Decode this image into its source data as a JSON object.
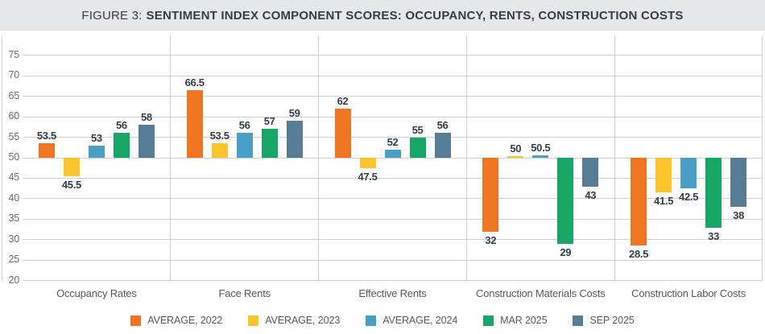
{
  "title": {
    "prefix": "FIGURE 3:",
    "main": "SENTIMENT INDEX COMPONENT SCORES: OCCUPANCY, RENTS, CONSTRUCTION COSTS"
  },
  "colors": {
    "title_bar_bg": "#e6e7e8",
    "title_text": "#333e48",
    "gridline": "#cfd0d2",
    "tick_text": "#6d6e71",
    "category_text": "#58595b",
    "value_label_text": "#333e48",
    "legend_text": "#58595b"
  },
  "chart_data": {
    "type": "bar",
    "title": "FIGURE 3: SENTIMENT INDEX COMPONENT SCORES: OCCUPANCY, RENTS, CONSTRUCTION COSTS",
    "baseline": 50,
    "ylim": [
      20,
      75
    ],
    "yticks": [
      75,
      70,
      65,
      60,
      55,
      50,
      45,
      40,
      35,
      30,
      25,
      20
    ],
    "grid": true,
    "legend_position": "bottom",
    "categories": [
      "Occupancy Rates",
      "Face Rents",
      "Effective Rents",
      "Construction Materials Costs",
      "Construction Labor Costs"
    ],
    "series": [
      {
        "name": "AVERAGE, 2022",
        "color": "#ef7523",
        "values": [
          53.5,
          66.5,
          62,
          32,
          28.5
        ]
      },
      {
        "name": "AVERAGE, 2023",
        "color": "#fdc32b",
        "values": [
          45.5,
          53.5,
          47.5,
          50,
          41.5
        ]
      },
      {
        "name": "AVERAGE, 2024",
        "color": "#4a9fc4",
        "values": [
          53,
          56,
          52,
          50.5,
          42.5
        ]
      },
      {
        "name": "MAR 2025",
        "color": "#16a564",
        "values": [
          56,
          57,
          55,
          29,
          33
        ]
      },
      {
        "name": "SEP 2025",
        "color": "#567c96",
        "values": [
          58,
          59,
          56,
          43,
          38
        ]
      }
    ]
  }
}
